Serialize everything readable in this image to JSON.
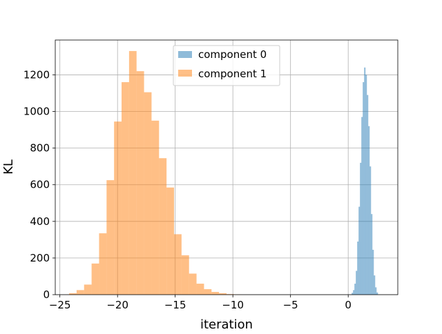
{
  "chart_data": {
    "type": "histogram",
    "title": "",
    "xlabel": "iteration",
    "ylabel": "KL",
    "xlim": [
      -25.4,
      4.3
    ],
    "ylim": [
      0,
      1390
    ],
    "xticks": [
      -25,
      -20,
      -15,
      -10,
      -5,
      0
    ],
    "xtick_labels": [
      "−25",
      "−20",
      "−15",
      "−10",
      "−5",
      "0"
    ],
    "yticks": [
      0,
      200,
      400,
      600,
      800,
      1000,
      1200
    ],
    "ytick_labels": [
      "0",
      "200",
      "400",
      "600",
      "800",
      "1000",
      "1200"
    ],
    "grid": true,
    "legend": {
      "position": "top-center",
      "entries": [
        "component 0",
        "component 1"
      ]
    },
    "series": [
      {
        "name": "component 0",
        "color": "#1f77b4",
        "alpha": 0.5,
        "bin_edges": [
          0.3,
          0.42,
          0.54,
          0.66,
          0.78,
          0.9,
          1.02,
          1.14,
          1.26,
          1.38,
          1.5,
          1.62,
          1.74,
          1.86,
          1.98,
          2.1,
          2.22,
          2.34,
          2.46,
          2.58
        ],
        "counts": [
          10,
          25,
          60,
          130,
          290,
          480,
          720,
          970,
          1160,
          1240,
          1200,
          1090,
          920,
          700,
          440,
          245,
          105,
          40,
          12
        ]
      },
      {
        "name": "component 1",
        "color": "#ff7f0e",
        "alpha": 0.5,
        "bin_edges": [
          -24.2,
          -23.55,
          -22.9,
          -22.25,
          -21.6,
          -20.95,
          -20.3,
          -19.65,
          -19.0,
          -18.35,
          -17.7,
          -17.05,
          -16.4,
          -15.75,
          -15.1,
          -14.45,
          -13.8,
          -13.15,
          -12.5,
          -11.85,
          -11.2,
          -10.55,
          -9.9,
          -9.25
        ],
        "counts": [
          8,
          25,
          55,
          170,
          335,
          625,
          945,
          1160,
          1330,
          1220,
          1105,
          950,
          745,
          585,
          330,
          215,
          115,
          60,
          30,
          15,
          8,
          3,
          1
        ]
      }
    ]
  }
}
